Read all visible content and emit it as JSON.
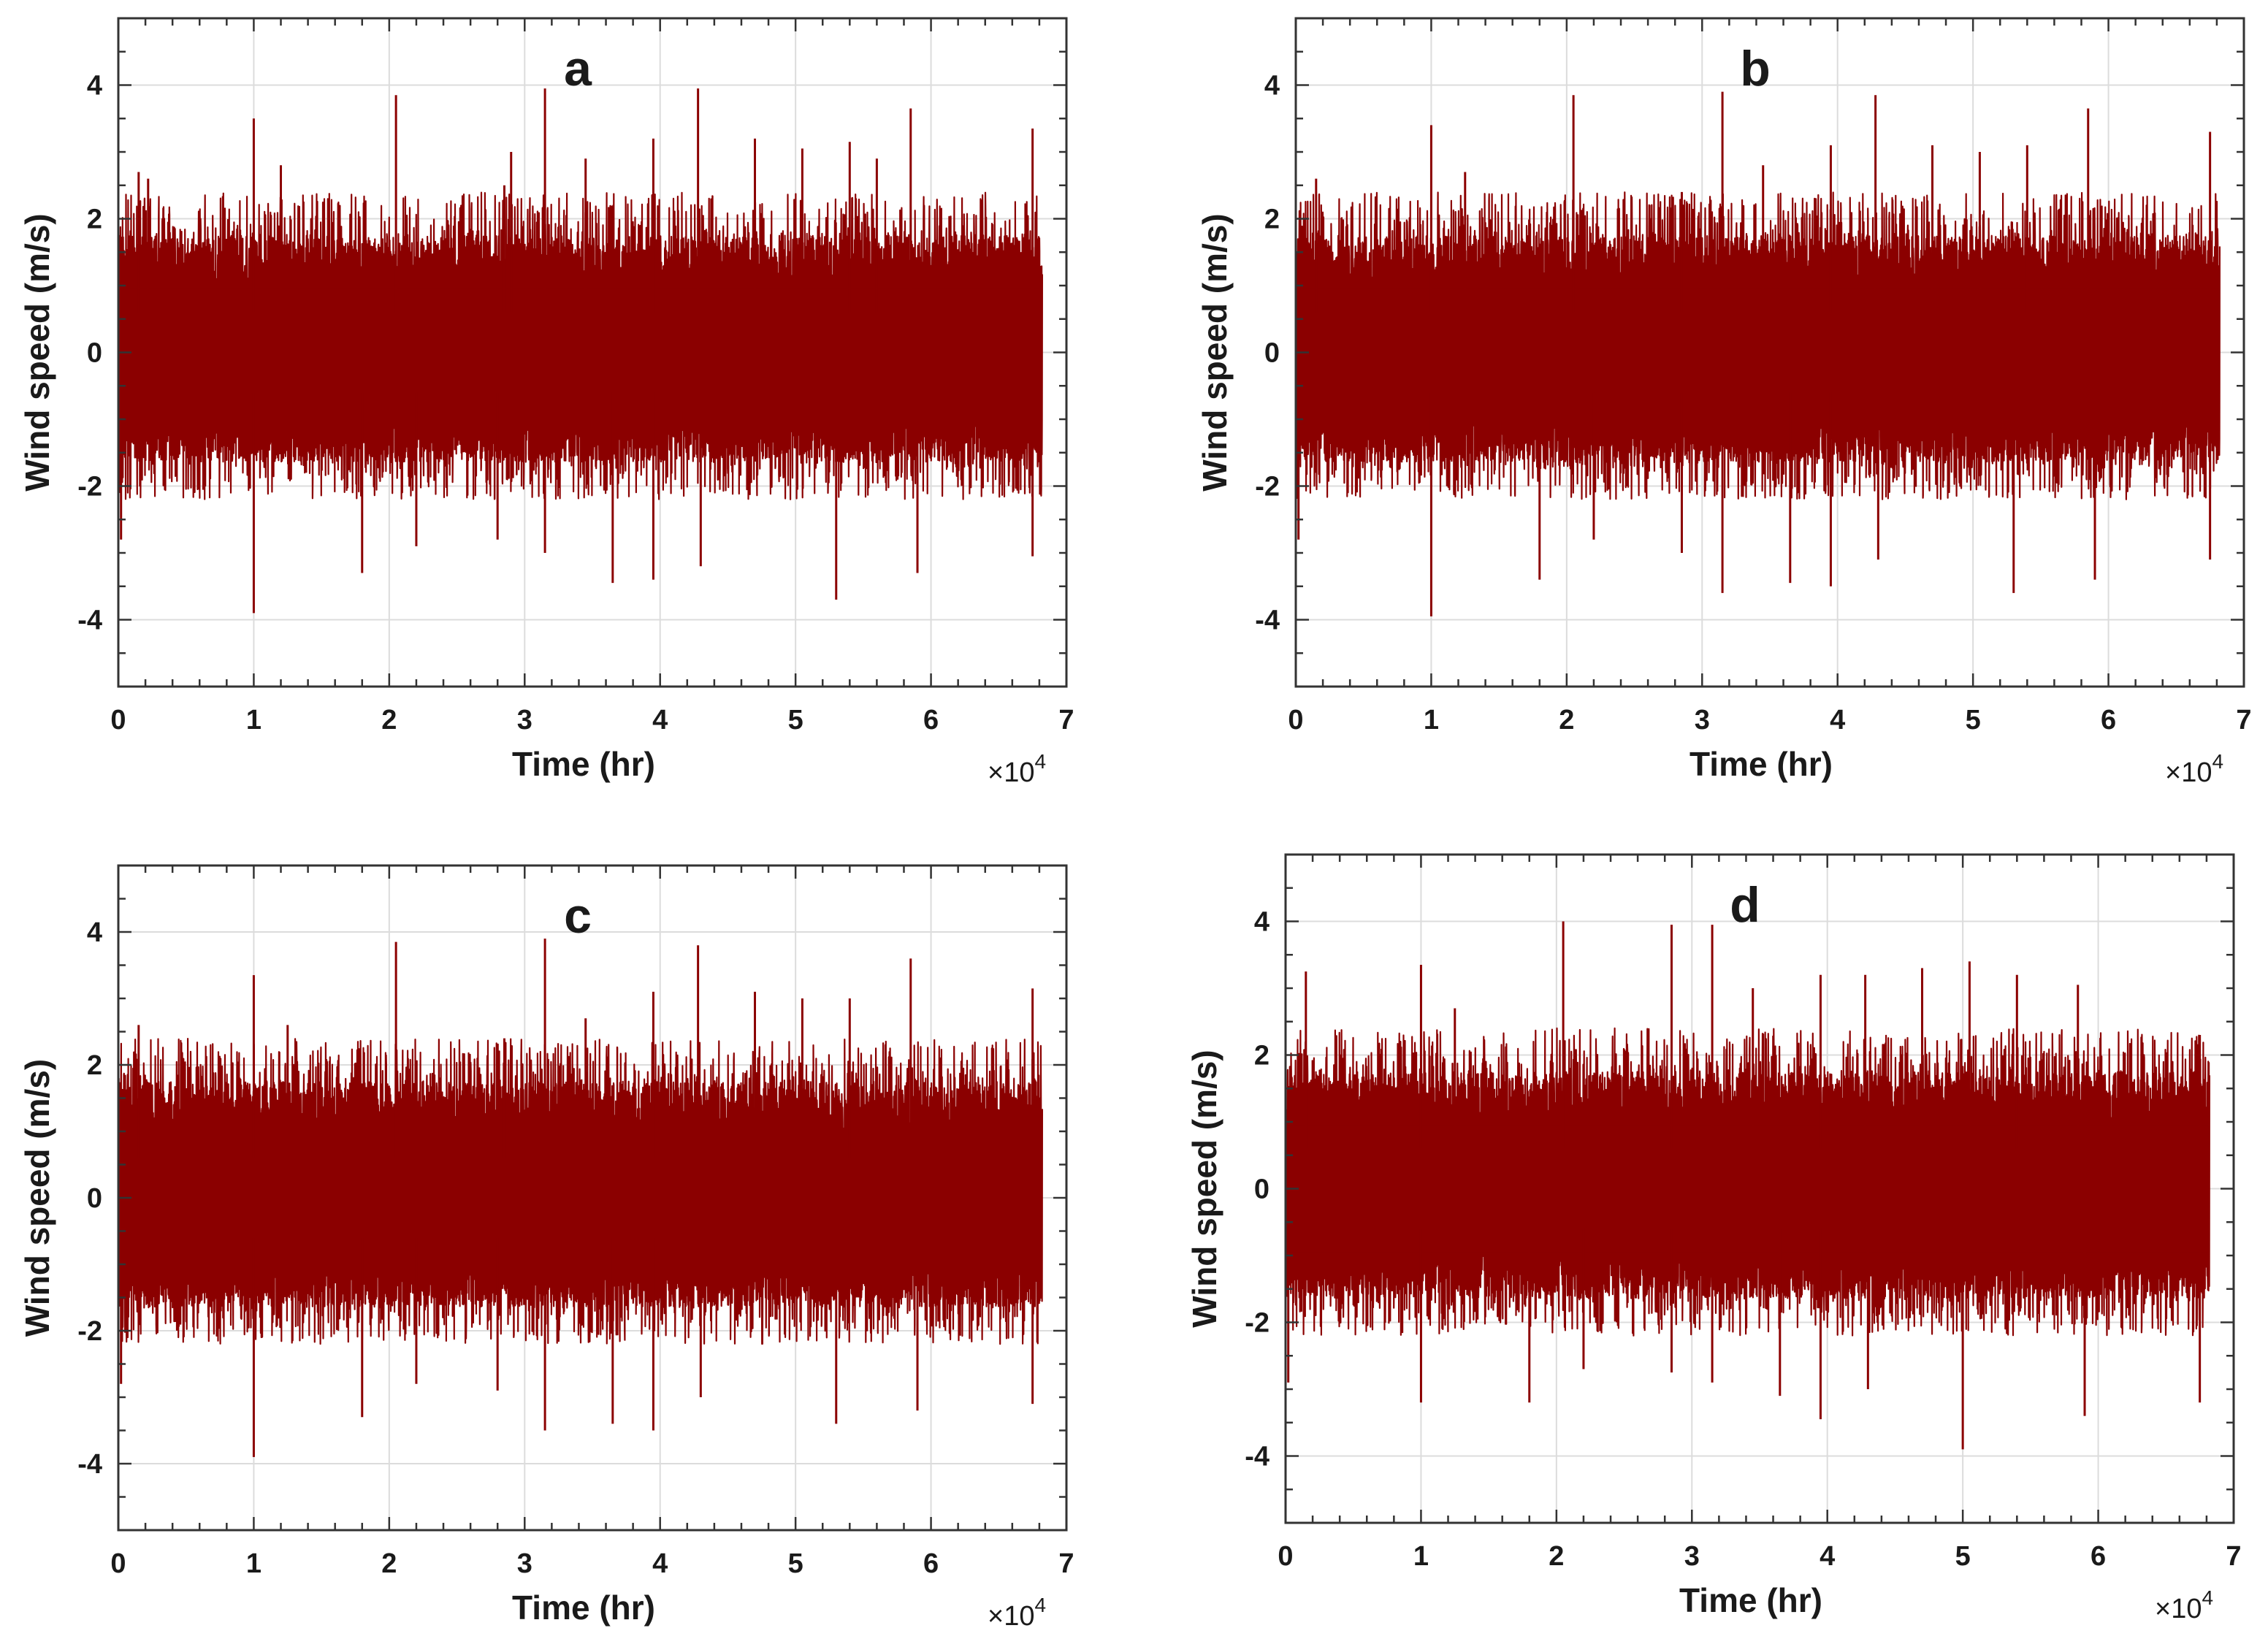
{
  "chart_data": [
    {
      "type": "line",
      "title": "a",
      "xlabel": "Time (hr)",
      "ylabel": "Wind speed (m/s)",
      "x_exponent_label": {
        "base": "×10",
        "power": "4"
      },
      "xlim": [
        0,
        7
      ],
      "ylim": [
        -5,
        5
      ],
      "x_data_end": 6.82,
      "xticks": [
        0,
        1,
        2,
        3,
        4,
        5,
        6,
        7
      ],
      "yticks": [
        -4,
        -2,
        0,
        2,
        4
      ],
      "xtick_labels": [
        "0",
        "1",
        "2",
        "3",
        "4",
        "5",
        "6",
        "7"
      ],
      "ytick_labels": [
        "-4",
        "-2",
        "0",
        "2",
        "4"
      ],
      "grid": true,
      "line_color": "#8b0000",
      "series": [
        {
          "name": "wind speed",
          "core_band": [
            -0.95,
            0.95
          ],
          "typical_range": [
            -2.2,
            2.4
          ],
          "peaks": [
            [
              0.15,
              2.7
            ],
            [
              0.22,
              2.6
            ],
            [
              1.0,
              3.5
            ],
            [
              1.2,
              2.8
            ],
            [
              2.05,
              3.85
            ],
            [
              2.85,
              2.5
            ],
            [
              2.9,
              3.0
            ],
            [
              3.15,
              3.95
            ],
            [
              3.45,
              2.9
            ],
            [
              3.95,
              3.2
            ],
            [
              4.28,
              3.95
            ],
            [
              4.7,
              3.2
            ],
            [
              5.05,
              3.05
            ],
            [
              5.4,
              3.15
            ],
            [
              5.6,
              2.9
            ],
            [
              5.85,
              3.65
            ],
            [
              6.75,
              3.35
            ]
          ],
          "troughs": [
            [
              0.02,
              -2.8
            ],
            [
              1.0,
              -3.9
            ],
            [
              1.8,
              -3.3
            ],
            [
              2.2,
              -2.9
            ],
            [
              2.8,
              -2.8
            ],
            [
              3.15,
              -3.0
            ],
            [
              3.65,
              -3.45
            ],
            [
              3.95,
              -3.4
            ],
            [
              4.3,
              -3.2
            ],
            [
              5.3,
              -3.7
            ],
            [
              5.9,
              -3.3
            ],
            [
              6.75,
              -3.05
            ]
          ]
        }
      ]
    },
    {
      "type": "line",
      "title": "b",
      "xlabel": "Time (hr)",
      "ylabel": "Wind speed (m/s)",
      "x_exponent_label": {
        "base": "×10",
        "power": "4"
      },
      "xlim": [
        0,
        7
      ],
      "ylim": [
        -5,
        5
      ],
      "x_data_end": 6.82,
      "xticks": [
        0,
        1,
        2,
        3,
        4,
        5,
        6,
        7
      ],
      "yticks": [
        -4,
        -2,
        0,
        2,
        4
      ],
      "xtick_labels": [
        "0",
        "1",
        "2",
        "3",
        "4",
        "5",
        "6",
        "7"
      ],
      "ytick_labels": [
        "-4",
        "-2",
        "0",
        "2",
        "4"
      ],
      "grid": true,
      "line_color": "#8b0000",
      "series": [
        {
          "name": "wind speed",
          "core_band": [
            -0.95,
            0.95
          ],
          "typical_range": [
            -2.2,
            2.4
          ],
          "peaks": [
            [
              0.15,
              2.6
            ],
            [
              1.0,
              3.4
            ],
            [
              1.25,
              2.7
            ],
            [
              2.05,
              3.85
            ],
            [
              2.85,
              2.4
            ],
            [
              3.15,
              3.9
            ],
            [
              3.45,
              2.8
            ],
            [
              3.95,
              3.1
            ],
            [
              4.28,
              3.85
            ],
            [
              4.7,
              3.1
            ],
            [
              5.05,
              3.0
            ],
            [
              5.4,
              3.1
            ],
            [
              5.85,
              3.65
            ],
            [
              6.75,
              3.3
            ]
          ],
          "troughs": [
            [
              0.02,
              -2.8
            ],
            [
              1.0,
              -3.95
            ],
            [
              1.8,
              -3.4
            ],
            [
              2.2,
              -2.8
            ],
            [
              2.85,
              -3.0
            ],
            [
              3.15,
              -3.6
            ],
            [
              3.65,
              -3.45
            ],
            [
              3.95,
              -3.5
            ],
            [
              4.3,
              -3.1
            ],
            [
              5.3,
              -3.6
            ],
            [
              5.9,
              -3.4
            ],
            [
              6.75,
              -3.1
            ]
          ]
        }
      ]
    },
    {
      "type": "line",
      "title": "c",
      "xlabel": "Time (hr)",
      "ylabel": "Wind speed (m/s)",
      "x_exponent_label": {
        "base": "×10",
        "power": "4"
      },
      "xlim": [
        0,
        7
      ],
      "ylim": [
        -5,
        5
      ],
      "x_data_end": 6.82,
      "xticks": [
        0,
        1,
        2,
        3,
        4,
        5,
        6,
        7
      ],
      "yticks": [
        -4,
        -2,
        0,
        2,
        4
      ],
      "xtick_labels": [
        "0",
        "1",
        "2",
        "3",
        "4",
        "5",
        "6",
        "7"
      ],
      "ytick_labels": [
        "-4",
        "-2",
        "0",
        "2",
        "4"
      ],
      "grid": true,
      "line_color": "#8b0000",
      "series": [
        {
          "name": "wind speed",
          "core_band": [
            -0.95,
            0.95
          ],
          "typical_range": [
            -2.2,
            2.4
          ],
          "peaks": [
            [
              0.15,
              2.6
            ],
            [
              1.0,
              3.35
            ],
            [
              1.25,
              2.6
            ],
            [
              2.05,
              3.85
            ],
            [
              2.85,
              2.4
            ],
            [
              3.15,
              3.9
            ],
            [
              3.45,
              2.7
            ],
            [
              3.95,
              3.1
            ],
            [
              4.28,
              3.8
            ],
            [
              4.7,
              3.1
            ],
            [
              5.05,
              3.0
            ],
            [
              5.4,
              3.0
            ],
            [
              5.85,
              3.6
            ],
            [
              6.75,
              3.15
            ]
          ],
          "troughs": [
            [
              0.02,
              -2.8
            ],
            [
              1.0,
              -3.9
            ],
            [
              1.8,
              -3.3
            ],
            [
              2.2,
              -2.8
            ],
            [
              2.8,
              -2.9
            ],
            [
              3.15,
              -3.5
            ],
            [
              3.65,
              -3.4
            ],
            [
              3.95,
              -3.5
            ],
            [
              4.3,
              -3.0
            ],
            [
              5.3,
              -3.4
            ],
            [
              5.9,
              -3.2
            ],
            [
              6.75,
              -3.1
            ]
          ]
        }
      ]
    },
    {
      "type": "line",
      "title": "d",
      "xlabel": "Time (hr)",
      "ylabel": "Wind speed (m/s)",
      "x_exponent_label": {
        "base": "×10",
        "power": "4"
      },
      "xlim": [
        0,
        7
      ],
      "ylim": [
        -5,
        5
      ],
      "x_data_end": 6.82,
      "xticks": [
        0,
        1,
        2,
        3,
        4,
        5,
        6,
        7
      ],
      "yticks": [
        -4,
        -2,
        0,
        2,
        4
      ],
      "xtick_labels": [
        "0",
        "1",
        "2",
        "3",
        "4",
        "5",
        "6",
        "7"
      ],
      "ytick_labels": [
        "-4",
        "-2",
        "0",
        "2",
        "4"
      ],
      "grid": true,
      "line_color": "#8b0000",
      "series": [
        {
          "name": "wind speed",
          "core_band": [
            -0.95,
            0.95
          ],
          "typical_range": [
            -2.2,
            2.4
          ],
          "peaks": [
            [
              0.15,
              3.25
            ],
            [
              1.0,
              3.35
            ],
            [
              1.25,
              2.7
            ],
            [
              2.05,
              4.0
            ],
            [
              2.85,
              3.95
            ],
            [
              3.15,
              3.95
            ],
            [
              3.45,
              3.0
            ],
            [
              3.95,
              3.2
            ],
            [
              4.28,
              3.2
            ],
            [
              4.7,
              3.3
            ],
            [
              5.05,
              3.4
            ],
            [
              5.4,
              3.2
            ],
            [
              5.85,
              3.05
            ],
            [
              6.75,
              2.3
            ]
          ],
          "troughs": [
            [
              0.02,
              -2.9
            ],
            [
              1.0,
              -3.2
            ],
            [
              1.8,
              -3.2
            ],
            [
              2.2,
              -2.7
            ],
            [
              2.85,
              -2.75
            ],
            [
              3.15,
              -2.9
            ],
            [
              3.65,
              -3.1
            ],
            [
              3.95,
              -3.45
            ],
            [
              4.3,
              -3.0
            ],
            [
              5.0,
              -3.9
            ],
            [
              5.9,
              -3.4
            ],
            [
              6.75,
              -3.2
            ]
          ]
        }
      ]
    }
  ]
}
